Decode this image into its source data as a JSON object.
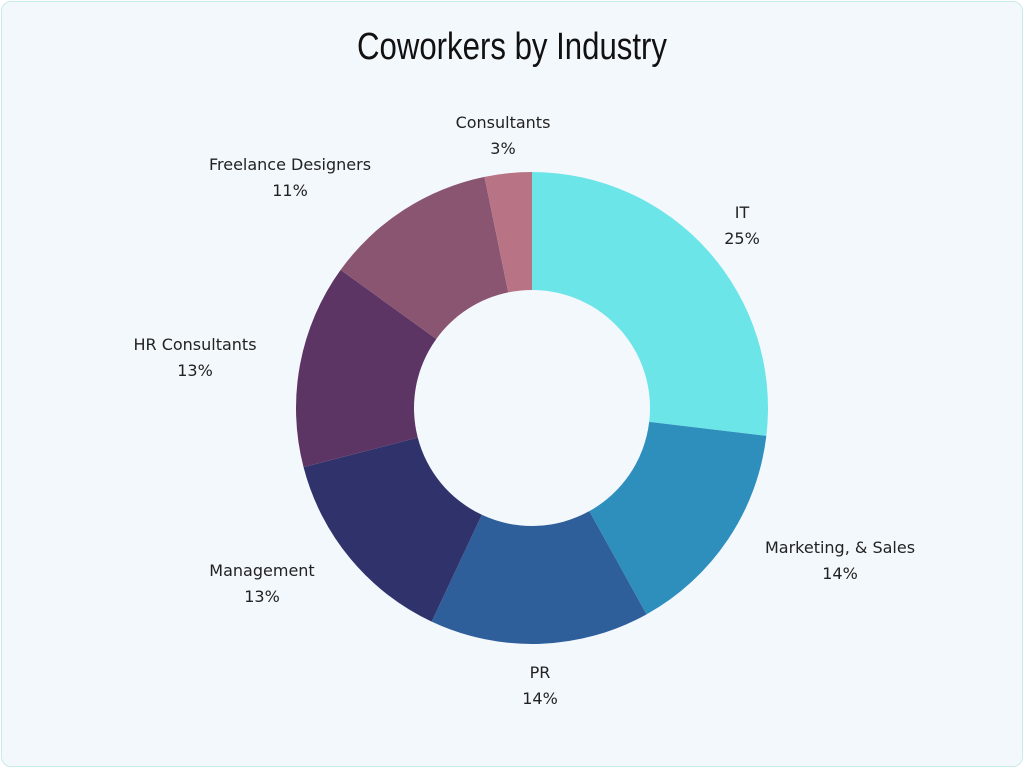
{
  "chart_data": {
    "type": "pie",
    "donut": true,
    "title": "Coworkers by Industry",
    "start": "top, clockwise",
    "slices": [
      {
        "label": "IT",
        "value": 25,
        "value_label": "25%",
        "color": "#6ce5e8"
      },
      {
        "label": "Marketing, & Sales",
        "value": 14,
        "value_label": "14%",
        "color": "#2e8fbd"
      },
      {
        "label": "PR",
        "value": 14,
        "value_label": "14%",
        "color": "#2e5f9a"
      },
      {
        "label": "Management",
        "value": 13,
        "value_label": "13%",
        "color": "#30336b"
      },
      {
        "label": "HR Consultants",
        "value": 13,
        "value_label": "13%",
        "color": "#5c3565"
      },
      {
        "label": "Freelance Designers",
        "value": 11,
        "value_label": "11%",
        "color": "#8a5570"
      },
      {
        "label": "Consultants",
        "value": 3,
        "value_label": "3%",
        "color": "#b87484"
      }
    ],
    "background": "#f3f8fd"
  }
}
